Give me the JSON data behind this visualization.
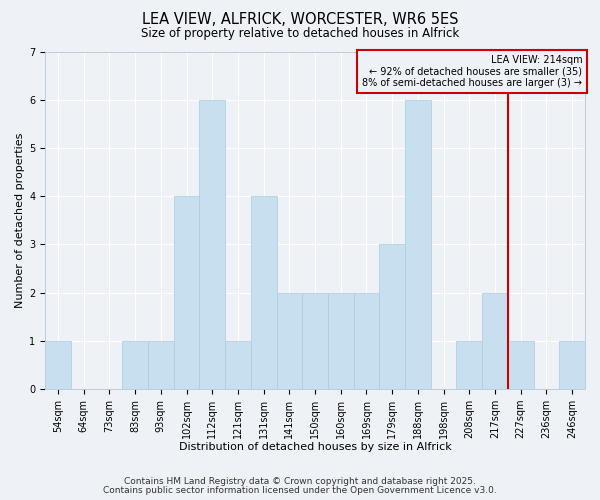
{
  "title": "LEA VIEW, ALFRICK, WORCESTER, WR6 5ES",
  "subtitle": "Size of property relative to detached houses in Alfrick",
  "xlabel": "Distribution of detached houses by size in Alfrick",
  "ylabel": "Number of detached properties",
  "bar_labels": [
    "54sqm",
    "64sqm",
    "73sqm",
    "83sqm",
    "93sqm",
    "102sqm",
    "112sqm",
    "121sqm",
    "131sqm",
    "141sqm",
    "150sqm",
    "160sqm",
    "169sqm",
    "179sqm",
    "188sqm",
    "198sqm",
    "208sqm",
    "217sqm",
    "227sqm",
    "236sqm",
    "246sqm"
  ],
  "bar_values": [
    1,
    0,
    0,
    1,
    1,
    4,
    6,
    1,
    4,
    2,
    2,
    2,
    2,
    3,
    6,
    0,
    1,
    2,
    1,
    0,
    1
  ],
  "bar_color": "#c8dff0",
  "bar_edgecolor": "#aaccdd",
  "vline_index": 17,
  "vline_color": "#cc0000",
  "legend_line1": "LEA VIEW: 214sqm",
  "legend_line2": "← 92% of detached houses are smaller (35)",
  "legend_line3": "8% of semi-detached houses are larger (3) →",
  "legend_box_color": "#cc0000",
  "ylim": [
    0,
    7
  ],
  "yticks": [
    0,
    1,
    2,
    3,
    4,
    5,
    6,
    7
  ],
  "footnote1": "Contains HM Land Registry data © Crown copyright and database right 2025.",
  "footnote2": "Contains public sector information licensed under the Open Government Licence v3.0.",
  "bg_color": "#eef2f7",
  "grid_color": "#ffffff",
  "title_fontsize": 10.5,
  "subtitle_fontsize": 8.5,
  "axis_label_fontsize": 8,
  "tick_fontsize": 7,
  "footnote_fontsize": 6.5
}
